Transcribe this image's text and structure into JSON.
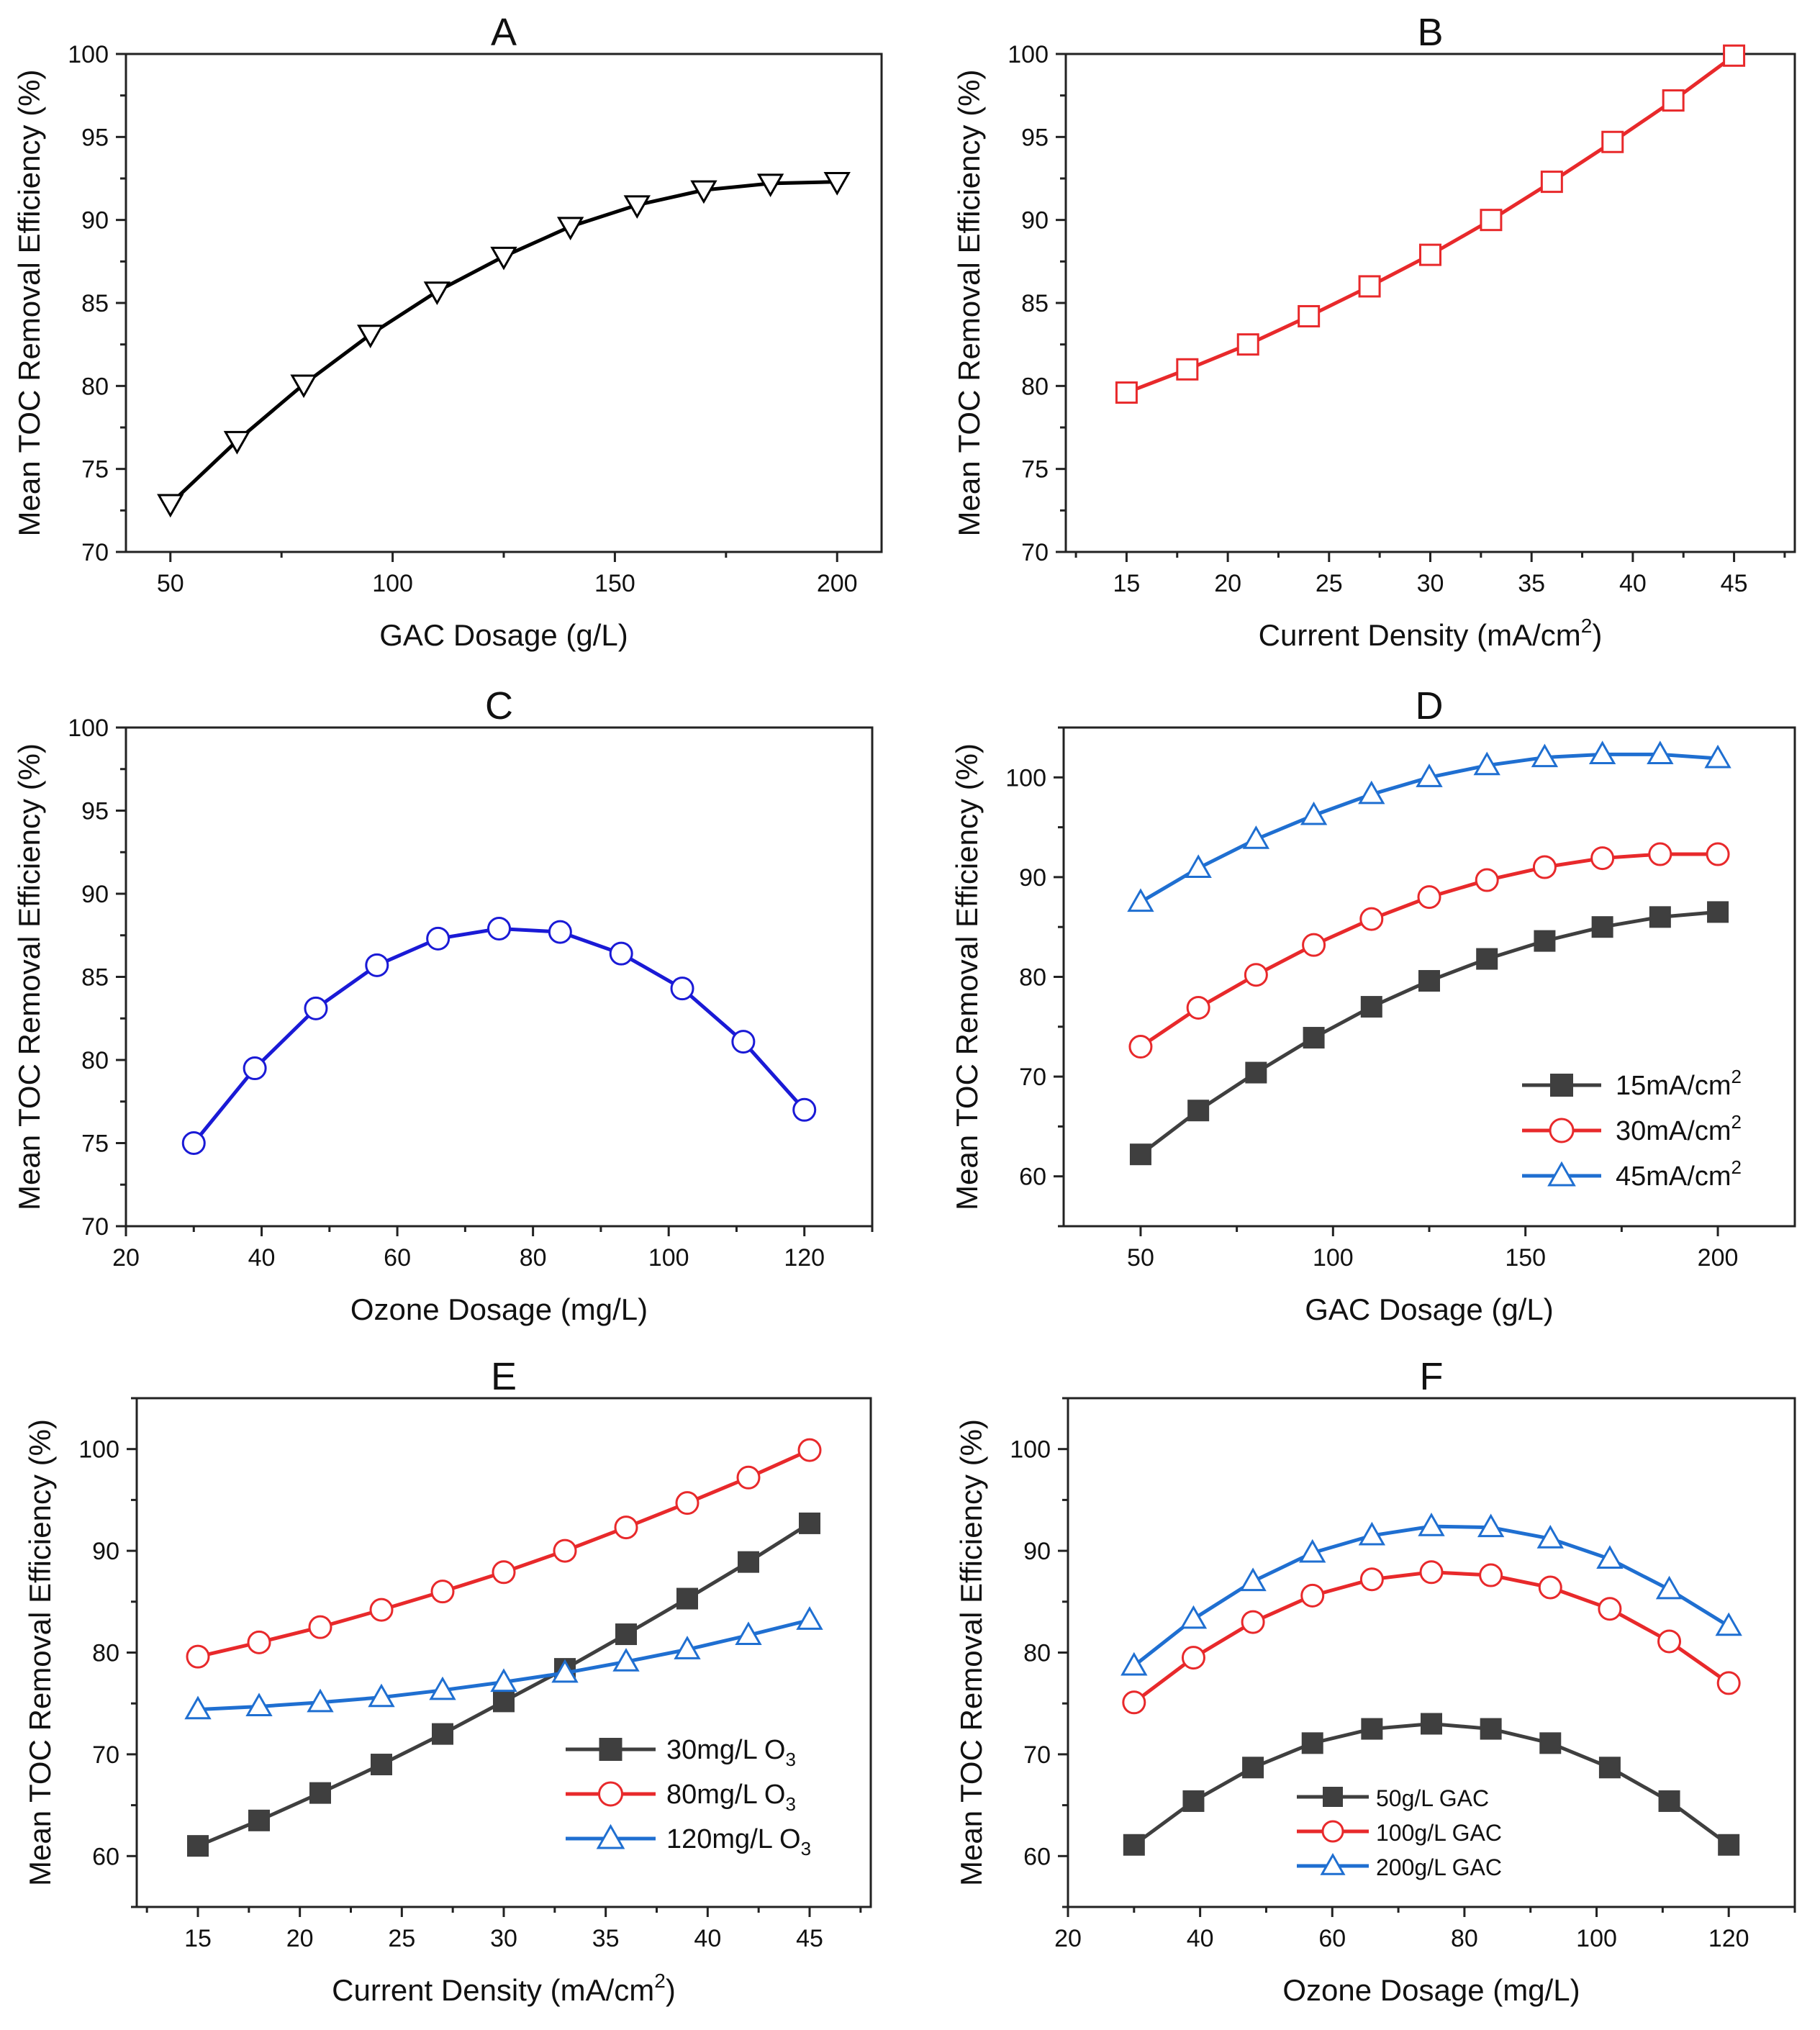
{
  "figure": {
    "chart_data": [
      {
        "id": "A",
        "type": "line",
        "title": "A",
        "xlabel": "GAC Dosage (g/L)",
        "ylabel": "Mean TOC Removal Efficiency (%)",
        "xlim": [
          40,
          210
        ],
        "ylim": [
          70,
          100
        ],
        "xticks": [
          50,
          100,
          150,
          200
        ],
        "yticks": [
          70,
          75,
          80,
          85,
          90,
          95,
          100
        ],
        "series": [
          {
            "name": "",
            "color": "#000000",
            "marker": "triangle-down",
            "x": [
              50,
              65,
              80,
              95,
              110,
              125,
              140,
              155,
              170,
              185,
              200
            ],
            "values": [
              72.9,
              76.7,
              80.1,
              83.1,
              85.7,
              87.8,
              89.6,
              90.9,
              91.8,
              92.2,
              92.3
            ]
          }
        ]
      },
      {
        "id": "B",
        "type": "line",
        "title": "B",
        "xlabel": "Current Density (mA/cm",
        "xlabel_sup": "2",
        "xlabel_tail": ")",
        "ylabel": "Mean TOC Removal Efficiency (%)",
        "xlim": [
          12,
          48
        ],
        "ylim": [
          70,
          100
        ],
        "xticks": [
          15,
          20,
          25,
          30,
          35,
          40,
          45
        ],
        "yticks": [
          70,
          75,
          80,
          85,
          90,
          95,
          100
        ],
        "series": [
          {
            "name": "",
            "color": "#e8292b",
            "marker": "square-open",
            "x": [
              15,
              18,
              21,
              24,
              27,
              30,
              33,
              36,
              39,
              42,
              45
            ],
            "values": [
              79.6,
              81.0,
              82.5,
              84.2,
              86.0,
              87.9,
              90.0,
              92.3,
              94.7,
              97.2,
              99.9
            ]
          }
        ]
      },
      {
        "id": "C",
        "type": "line",
        "title": "C",
        "xlabel": "Ozone Dosage (mg/L)",
        "ylabel": "Mean TOC Removal Efficiency (%)",
        "xlim": [
          20,
          130
        ],
        "ylim": [
          70,
          100
        ],
        "xticks": [
          20,
          40,
          60,
          80,
          100,
          120
        ],
        "yticks": [
          70,
          75,
          80,
          85,
          90,
          95,
          100
        ],
        "series": [
          {
            "name": "",
            "color": "#1a1ad6",
            "marker": "circle-open",
            "x": [
              30,
              39,
              48,
              57,
              66,
              75,
              84,
              93,
              102,
              111,
              120
            ],
            "values": [
              75.0,
              79.5,
              83.1,
              85.7,
              87.3,
              87.9,
              87.7,
              86.4,
              84.3,
              81.1,
              77.0
            ]
          }
        ]
      },
      {
        "id": "D",
        "type": "line",
        "title": "D",
        "xlabel": "GAC Dosage (g/L)",
        "ylabel": "Mean TOC Removal Efficiency (%)",
        "xlim": [
          30,
          220
        ],
        "ylim": [
          55,
          105
        ],
        "xticks": [
          50,
          100,
          150,
          200
        ],
        "yticks": [
          60,
          70,
          80,
          90,
          100
        ],
        "legend_position": "bottom-right",
        "series": [
          {
            "name": "15mA/cm",
            "name_sup": "2",
            "color": "#3f3f3f",
            "marker": "square-filled",
            "x": [
              50,
              65,
              80,
              95,
              110,
              125,
              140,
              155,
              170,
              185,
              200
            ],
            "values": [
              62.2,
              66.6,
              70.4,
              73.9,
              77.0,
              79.6,
              81.8,
              83.6,
              85.0,
              86.0,
              86.5
            ]
          },
          {
            "name": "30mA/cm",
            "name_sup": "2",
            "color": "#e8292b",
            "marker": "circle-open",
            "x": [
              50,
              65,
              80,
              95,
              110,
              125,
              140,
              155,
              170,
              185,
              200
            ],
            "values": [
              73.0,
              76.9,
              80.2,
              83.2,
              85.8,
              88.0,
              89.7,
              91.0,
              91.9,
              92.3,
              92.3
            ]
          },
          {
            "name": "45mA/cm",
            "name_sup": "2",
            "color": "#1f6fd1",
            "marker": "triangle-open",
            "x": [
              50,
              65,
              80,
              95,
              110,
              125,
              140,
              155,
              170,
              185,
              200
            ],
            "values": [
              87.5,
              90.9,
              93.8,
              96.2,
              98.3,
              100.0,
              101.2,
              102.0,
              102.3,
              102.3,
              101.9
            ]
          }
        ]
      },
      {
        "id": "E",
        "type": "line",
        "title": "E",
        "xlabel": "Current Density (mA/cm",
        "xlabel_sup": "2",
        "xlabel_tail": ")",
        "ylabel": "Mean TOC Removal Efficiency (%)",
        "xlim": [
          12,
          48
        ],
        "ylim": [
          55,
          105
        ],
        "xticks": [
          15,
          20,
          25,
          30,
          35,
          40,
          45
        ],
        "yticks": [
          60,
          70,
          80,
          90,
          100
        ],
        "legend_position": "bottom-right",
        "series": [
          {
            "name": "30mg/L O",
            "name_sub": "3",
            "color": "#3f3f3f",
            "marker": "square-filled",
            "x": [
              15,
              18,
              21,
              24,
              27,
              30,
              33,
              36,
              39,
              42,
              45
            ],
            "values": [
              61.0,
              63.5,
              66.2,
              69.0,
              72.0,
              75.2,
              78.4,
              81.8,
              85.3,
              88.9,
              92.7
            ]
          },
          {
            "name": "80mg/L O",
            "name_sub": "3",
            "color": "#e8292b",
            "marker": "circle-open",
            "x": [
              15,
              18,
              21,
              24,
              27,
              30,
              33,
              36,
              39,
              42,
              45
            ],
            "values": [
              79.6,
              81.0,
              82.5,
              84.2,
              86.0,
              87.9,
              90.0,
              92.3,
              94.7,
              97.2,
              99.9
            ]
          },
          {
            "name": "120mg/L O",
            "name_sub": "3",
            "color": "#1f6fd1",
            "marker": "triangle-open",
            "x": [
              15,
              18,
              21,
              24,
              27,
              30,
              33,
              36,
              39,
              42,
              45
            ],
            "values": [
              74.4,
              74.7,
              75.1,
              75.6,
              76.3,
              77.1,
              78.0,
              79.1,
              80.3,
              81.7,
              83.2
            ]
          }
        ]
      },
      {
        "id": "F",
        "type": "line",
        "title": "F",
        "xlabel": "Ozone Dosage (mg/L)",
        "ylabel": "Mean TOC Removal Efficiency (%)",
        "xlim": [
          20,
          130
        ],
        "ylim": [
          55,
          105
        ],
        "xticks": [
          20,
          40,
          60,
          80,
          100,
          120
        ],
        "yticks": [
          60,
          70,
          80,
          90,
          100
        ],
        "legend_position": "bottom-left",
        "series": [
          {
            "name": "50g/L GAC",
            "color": "#3f3f3f",
            "marker": "square-filled",
            "x": [
              30,
              39,
              48,
              57,
              66,
              75,
              84,
              93,
              102,
              111,
              120
            ],
            "values": [
              61.1,
              65.4,
              68.7,
              71.1,
              72.5,
              73.0,
              72.5,
              71.1,
              68.7,
              65.4,
              61.1
            ]
          },
          {
            "name": "100g/L GAC",
            "color": "#e8292b",
            "marker": "circle-open",
            "x": [
              30,
              39,
              48,
              57,
              66,
              75,
              84,
              93,
              102,
              111,
              120
            ],
            "values": [
              75.1,
              79.5,
              83.0,
              85.6,
              87.2,
              87.9,
              87.6,
              86.4,
              84.3,
              81.1,
              77.0
            ]
          },
          {
            "name": "200g/L GAC",
            "color": "#1f6fd1",
            "marker": "triangle-open",
            "x": [
              30,
              39,
              48,
              57,
              66,
              75,
              84,
              93,
              102,
              111,
              120
            ],
            "values": [
              78.7,
              83.3,
              87.0,
              89.8,
              91.5,
              92.4,
              92.3,
              91.2,
              89.2,
              86.2,
              82.6
            ]
          }
        ]
      }
    ]
  }
}
